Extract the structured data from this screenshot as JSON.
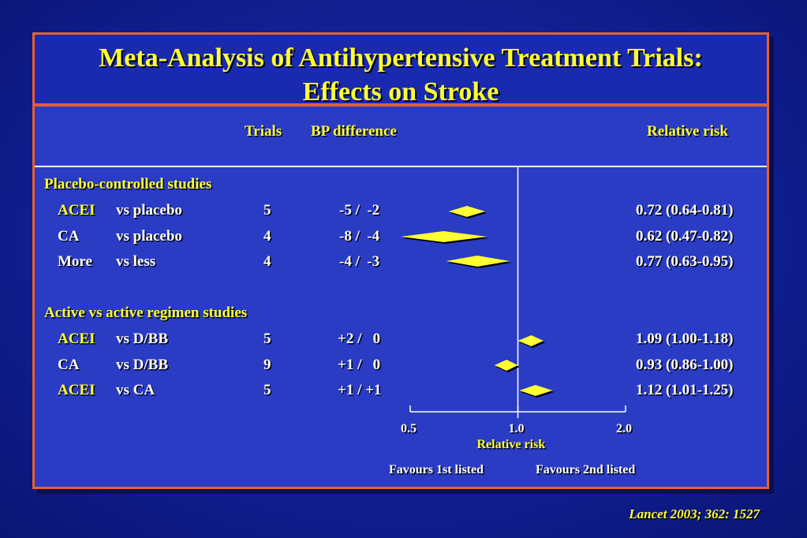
{
  "title": {
    "line1": "Meta-Analysis of Antihypertensive Treatment Trials:",
    "line2": "Effects on Stroke"
  },
  "headers": {
    "trials": "Trials",
    "bp_difference": "BP difference",
    "relative_risk": "Relative risk"
  },
  "sections": [
    {
      "heading": "Placebo-controlled studies",
      "rows": [
        {
          "drug": "ACEI",
          "drug_color": "#ffff33",
          "comparison": "vs placebo",
          "trials": "5",
          "bp": "-5 /  -2",
          "rr_text": "0.72 (0.64-0.81)"
        },
        {
          "drug": "CA",
          "drug_color": "#ffffff",
          "comparison": "vs placebo",
          "trials": "4",
          "bp": "-8 /  -4",
          "rr_text": "0.62 (0.47-0.82)"
        },
        {
          "drug": "More",
          "drug_color": "#ffffff",
          "comparison": "vs less",
          "trials": "4",
          "bp": "-4 /  -3",
          "rr_text": "0.77 (0.63-0.95)"
        }
      ]
    },
    {
      "heading": "Active vs active regimen studies",
      "rows": [
        {
          "drug": "ACEI",
          "drug_color": "#ffff33",
          "comparison": "vs D/BB",
          "trials": "5",
          "bp": "+2 /   0",
          "rr_text": "1.09 (1.00-1.18)"
        },
        {
          "drug": "CA",
          "drug_color": "#ffffff",
          "comparison": "vs D/BB",
          "trials": "9",
          "bp": "+1 /   0",
          "rr_text": "0.93 (0.86-1.00)"
        },
        {
          "drug": "ACEI",
          "drug_color": "#ffff33",
          "comparison": "vs CA",
          "trials": "5",
          "bp": "+1 / +1",
          "rr_text": "1.12 (1.01-1.25)"
        }
      ]
    }
  ],
  "chart_data": {
    "type": "forest",
    "xlabel": "Relative risk",
    "scale": "log",
    "xlim": [
      0.5,
      2.0
    ],
    "ticks": [
      {
        "value": 0.5,
        "label": "0.5"
      },
      {
        "value": 1.0,
        "label": "1.0"
      },
      {
        "value": 2.0,
        "label": "2.0"
      }
    ],
    "reference_line": 1.0,
    "marker_color": "#ffff33",
    "left_annotation": "Favours 1st listed",
    "right_annotation": "Favours 2nd listed",
    "points": [
      {
        "label": "ACEI vs placebo",
        "rr": 0.72,
        "lo": 0.64,
        "hi": 0.81
      },
      {
        "label": "CA vs placebo",
        "rr": 0.62,
        "lo": 0.47,
        "hi": 0.82
      },
      {
        "label": "More vs less",
        "rr": 0.77,
        "lo": 0.63,
        "hi": 0.95
      },
      {
        "label": "ACEI vs D/BB",
        "rr": 1.09,
        "lo": 1.0,
        "hi": 1.18
      },
      {
        "label": "CA vs D/BB",
        "rr": 0.93,
        "lo": 0.86,
        "hi": 1.0
      },
      {
        "label": "ACEI vs CA",
        "rr": 1.12,
        "lo": 1.01,
        "hi": 1.25
      }
    ]
  },
  "citation": "Lancet 2003; 362: 1527"
}
